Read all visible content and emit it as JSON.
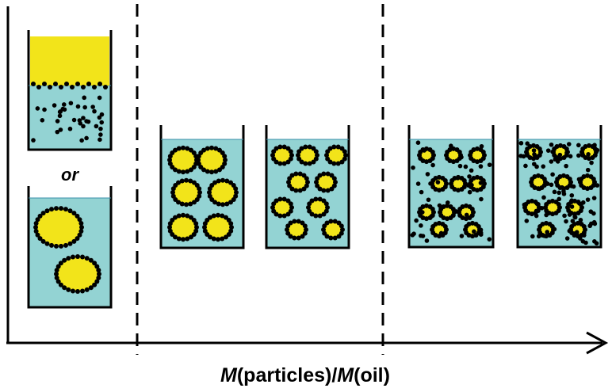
{
  "or_label": "or",
  "x_axis_label": [
    "M",
    "(particles)/",
    "M",
    "(oil)"
  ]
}
